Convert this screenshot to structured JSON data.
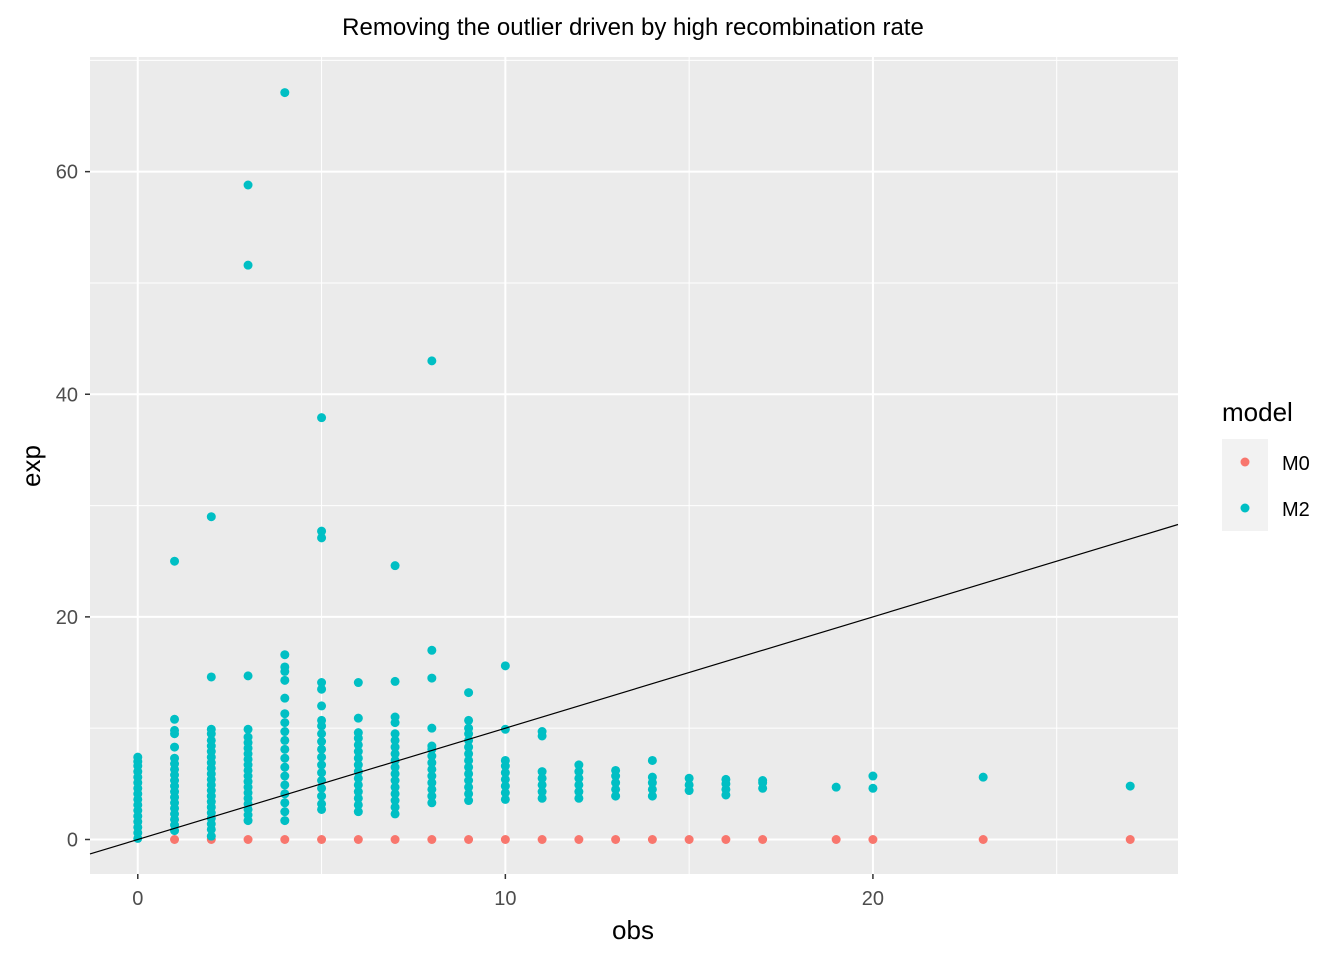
{
  "chart_data": {
    "type": "scatter",
    "title": "Removing the outlier driven by high recombination rate",
    "xlabel": "obs",
    "ylabel": "exp",
    "xlim": [
      -1.3,
      28.3
    ],
    "ylim": [
      -3.1,
      70.3
    ],
    "x_ticks": [
      0,
      10,
      20
    ],
    "y_ticks": [
      0,
      20,
      40,
      60
    ],
    "grid": true,
    "legend": {
      "title": "model",
      "position": "right"
    },
    "reference_line": {
      "intercept": 0,
      "slope": 1,
      "color": "#000000"
    },
    "series": [
      {
        "name": "M0",
        "color": "#F8766D",
        "points": [
          [
            1,
            0
          ],
          [
            2,
            0
          ],
          [
            3,
            0
          ],
          [
            4,
            0
          ],
          [
            5,
            0
          ],
          [
            6,
            0
          ],
          [
            7,
            0
          ],
          [
            8,
            0
          ],
          [
            9,
            0
          ],
          [
            10,
            0
          ],
          [
            11,
            0
          ],
          [
            12,
            0
          ],
          [
            13,
            0
          ],
          [
            14,
            0
          ],
          [
            15,
            0
          ],
          [
            16,
            0
          ],
          [
            17,
            0
          ],
          [
            19,
            0
          ],
          [
            20,
            0
          ],
          [
            23,
            0
          ],
          [
            27,
            0
          ]
        ]
      },
      {
        "name": "M2",
        "color": "#00BFC4",
        "points": [
          [
            0,
            0.1
          ],
          [
            0,
            0.6
          ],
          [
            0,
            1.1
          ],
          [
            0,
            1.6
          ],
          [
            0,
            2.1
          ],
          [
            0,
            2.6
          ],
          [
            0,
            3.1
          ],
          [
            0,
            3.6
          ],
          [
            0,
            4.1
          ],
          [
            0,
            4.6
          ],
          [
            0,
            5.1
          ],
          [
            0,
            5.6
          ],
          [
            0,
            6.1
          ],
          [
            0,
            6.6
          ],
          [
            0,
            7.0
          ],
          [
            0,
            7.4
          ],
          [
            1,
            0.8
          ],
          [
            1,
            1.3
          ],
          [
            1,
            1.8
          ],
          [
            1,
            2.3
          ],
          [
            1,
            2.8
          ],
          [
            1,
            3.3
          ],
          [
            1,
            3.8
          ],
          [
            1,
            4.3
          ],
          [
            1,
            4.8
          ],
          [
            1,
            5.3
          ],
          [
            1,
            5.8
          ],
          [
            1,
            6.3
          ],
          [
            1,
            6.8
          ],
          [
            1,
            7.3
          ],
          [
            1,
            8.3
          ],
          [
            1,
            9.5
          ],
          [
            1,
            9.8
          ],
          [
            1,
            10.8
          ],
          [
            1,
            25.0
          ],
          [
            2,
            0.3
          ],
          [
            2,
            0.9
          ],
          [
            2,
            1.4
          ],
          [
            2,
            1.9
          ],
          [
            2,
            2.4
          ],
          [
            2,
            2.9
          ],
          [
            2,
            3.4
          ],
          [
            2,
            3.9
          ],
          [
            2,
            4.4
          ],
          [
            2,
            4.9
          ],
          [
            2,
            5.4
          ],
          [
            2,
            5.9
          ],
          [
            2,
            6.4
          ],
          [
            2,
            6.9
          ],
          [
            2,
            7.4
          ],
          [
            2,
            7.9
          ],
          [
            2,
            8.4
          ],
          [
            2,
            8.9
          ],
          [
            2,
            9.5
          ],
          [
            2,
            9.9
          ],
          [
            2,
            14.6
          ],
          [
            2,
            29.0
          ],
          [
            3,
            1.7
          ],
          [
            3,
            2.2
          ],
          [
            3,
            2.7
          ],
          [
            3,
            3.2
          ],
          [
            3,
            3.7
          ],
          [
            3,
            4.2
          ],
          [
            3,
            4.7
          ],
          [
            3,
            5.2
          ],
          [
            3,
            5.7
          ],
          [
            3,
            6.2
          ],
          [
            3,
            6.7
          ],
          [
            3,
            7.2
          ],
          [
            3,
            7.7
          ],
          [
            3,
            8.2
          ],
          [
            3,
            8.7
          ],
          [
            3,
            9.2
          ],
          [
            3,
            9.9
          ],
          [
            3,
            14.7
          ],
          [
            3,
            51.6
          ],
          [
            3,
            58.8
          ],
          [
            4,
            1.7
          ],
          [
            4,
            2.5
          ],
          [
            4,
            3.3
          ],
          [
            4,
            4.1
          ],
          [
            4,
            4.9
          ],
          [
            4,
            5.7
          ],
          [
            4,
            6.5
          ],
          [
            4,
            7.3
          ],
          [
            4,
            8.1
          ],
          [
            4,
            8.9
          ],
          [
            4,
            9.7
          ],
          [
            4,
            10.5
          ],
          [
            4,
            11.3
          ],
          [
            4,
            12.7
          ],
          [
            4,
            14.3
          ],
          [
            4,
            15.1
          ],
          [
            4,
            15.5
          ],
          [
            4,
            16.6
          ],
          [
            4,
            67.1
          ],
          [
            5,
            2.7
          ],
          [
            5,
            3.2
          ],
          [
            5,
            3.9
          ],
          [
            5,
            4.6
          ],
          [
            5,
            5.3
          ],
          [
            5,
            6.0
          ],
          [
            5,
            6.7
          ],
          [
            5,
            7.4
          ],
          [
            5,
            8.1
          ],
          [
            5,
            8.8
          ],
          [
            5,
            9.5
          ],
          [
            5,
            10.2
          ],
          [
            5,
            10.7
          ],
          [
            5,
            12.0
          ],
          [
            5,
            13.5
          ],
          [
            5,
            14.1
          ],
          [
            5,
            27.1
          ],
          [
            5,
            27.7
          ],
          [
            5,
            37.9
          ],
          [
            6,
            2.5
          ],
          [
            6,
            3.1
          ],
          [
            6,
            3.7
          ],
          [
            6,
            4.3
          ],
          [
            6,
            4.9
          ],
          [
            6,
            5.5
          ],
          [
            6,
            6.1
          ],
          [
            6,
            6.7
          ],
          [
            6,
            7.3
          ],
          [
            6,
            7.9
          ],
          [
            6,
            8.5
          ],
          [
            6,
            9.1
          ],
          [
            6,
            9.6
          ],
          [
            6,
            10.9
          ],
          [
            6,
            14.1
          ],
          [
            7,
            2.3
          ],
          [
            7,
            2.9
          ],
          [
            7,
            3.5
          ],
          [
            7,
            4.1
          ],
          [
            7,
            4.7
          ],
          [
            7,
            5.3
          ],
          [
            7,
            5.9
          ],
          [
            7,
            6.5
          ],
          [
            7,
            7.1
          ],
          [
            7,
            7.7
          ],
          [
            7,
            8.3
          ],
          [
            7,
            8.9
          ],
          [
            7,
            9.5
          ],
          [
            7,
            10.5
          ],
          [
            7,
            11.0
          ],
          [
            7,
            14.2
          ],
          [
            7,
            24.6
          ],
          [
            8,
            3.3
          ],
          [
            8,
            3.9
          ],
          [
            8,
            4.5
          ],
          [
            8,
            5.1
          ],
          [
            8,
            5.7
          ],
          [
            8,
            6.3
          ],
          [
            8,
            6.9
          ],
          [
            8,
            7.5
          ],
          [
            8,
            8.1
          ],
          [
            8,
            8.4
          ],
          [
            8,
            10.0
          ],
          [
            8,
            14.5
          ],
          [
            8,
            17.0
          ],
          [
            8,
            43.0
          ],
          [
            9,
            3.5
          ],
          [
            9,
            4.1
          ],
          [
            9,
            4.7
          ],
          [
            9,
            5.3
          ],
          [
            9,
            5.9
          ],
          [
            9,
            6.5
          ],
          [
            9,
            7.1
          ],
          [
            9,
            7.7
          ],
          [
            9,
            8.3
          ],
          [
            9,
            8.9
          ],
          [
            9,
            9.5
          ],
          [
            9,
            10.0
          ],
          [
            9,
            10.7
          ],
          [
            9,
            13.2
          ],
          [
            10,
            3.6
          ],
          [
            10,
            4.2
          ],
          [
            10,
            4.8
          ],
          [
            10,
            5.4
          ],
          [
            10,
            6.0
          ],
          [
            10,
            6.6
          ],
          [
            10,
            7.1
          ],
          [
            10,
            9.9
          ],
          [
            10,
            15.6
          ],
          [
            11,
            3.7
          ],
          [
            11,
            4.3
          ],
          [
            11,
            4.9
          ],
          [
            11,
            5.5
          ],
          [
            11,
            6.1
          ],
          [
            11,
            9.3
          ],
          [
            11,
            9.7
          ],
          [
            12,
            3.7
          ],
          [
            12,
            4.3
          ],
          [
            12,
            4.9
          ],
          [
            12,
            5.5
          ],
          [
            12,
            6.1
          ],
          [
            12,
            6.7
          ],
          [
            13,
            3.9
          ],
          [
            13,
            4.5
          ],
          [
            13,
            5.1
          ],
          [
            13,
            5.7
          ],
          [
            13,
            6.2
          ],
          [
            14,
            3.9
          ],
          [
            14,
            4.5
          ],
          [
            14,
            5.1
          ],
          [
            14,
            5.6
          ],
          [
            14,
            7.1
          ],
          [
            15,
            4.4
          ],
          [
            15,
            4.9
          ],
          [
            15,
            5.5
          ],
          [
            16,
            4.0
          ],
          [
            16,
            4.5
          ],
          [
            16,
            5.0
          ],
          [
            16,
            5.4
          ],
          [
            17,
            4.6
          ],
          [
            17,
            5.1
          ],
          [
            17,
            5.3
          ],
          [
            19,
            4.7
          ],
          [
            20,
            4.6
          ],
          [
            20,
            5.7
          ],
          [
            23,
            5.6
          ],
          [
            27,
            4.8
          ]
        ]
      }
    ]
  }
}
